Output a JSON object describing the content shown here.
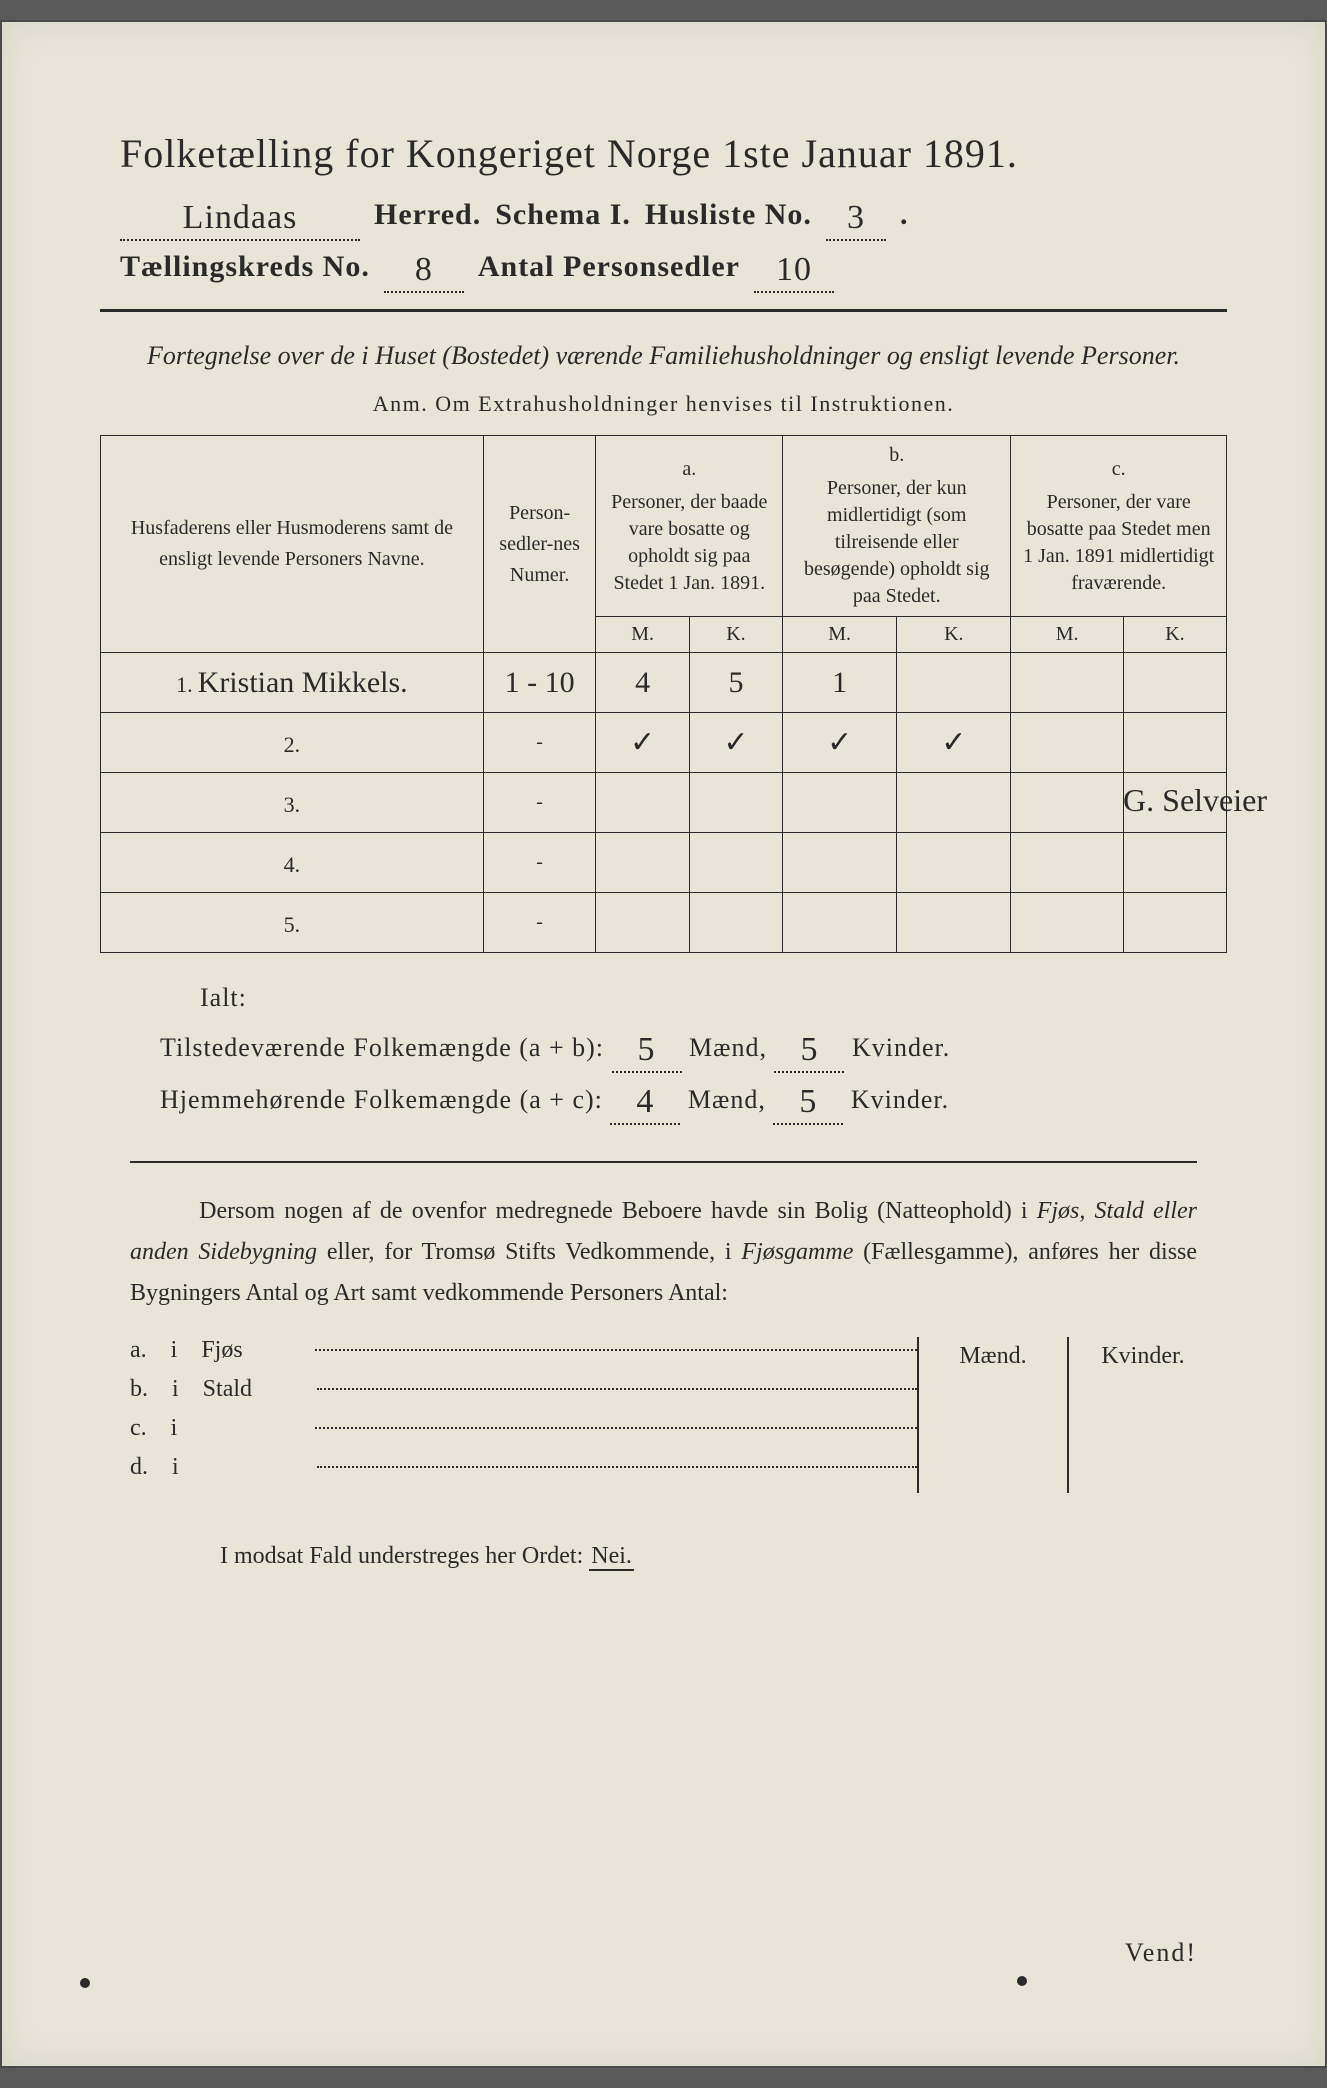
{
  "colors": {
    "page_bg": "#e8e5d8",
    "ink": "#2a2a2a",
    "outer_bg": "#5a5a5a"
  },
  "title": "Folketælling for Kongeriget Norge 1ste Januar 1891.",
  "header": {
    "herred_value": "Lindaas",
    "herred_label": "Herred.",
    "schema_label": "Schema I.",
    "husliste_label": "Husliste No.",
    "husliste_value": "3",
    "kreds_label": "Tællingskreds No.",
    "kreds_value": "8",
    "antal_label": "Antal Personsedler",
    "antal_value": "10"
  },
  "fortegnelse": "Fortegnelse over de i Huset (Bostedet) værende Familiehusholdninger og ensligt levende Personer.",
  "anm": "Anm.  Om Extrahusholdninger henvises til Instruktionen.",
  "table": {
    "col_name": "Husfaderens eller Husmoderens samt de ensligt levende Personers Navne.",
    "col_num": "Person-sedler-nes Numer.",
    "col_a_title": "a.",
    "col_a": "Personer, der baade vare bosatte og opholdt sig paa Stedet 1 Jan. 1891.",
    "col_b_title": "b.",
    "col_b": "Personer, der kun midlertidigt (som tilreisende eller besøgende) opholdt sig paa Stedet.",
    "col_c_title": "c.",
    "col_c": "Personer, der vare bosatte paa Stedet men 1 Jan. 1891 midlertidigt fraværende.",
    "m": "M.",
    "k": "K.",
    "rows": [
      {
        "n": "1.",
        "name": "Kristian Mikkels.",
        "num": "1 - 10",
        "aM": "4",
        "aK": "5",
        "bM": "1",
        "bK": "",
        "cM": "",
        "cK": ""
      },
      {
        "n": "2.",
        "name": "",
        "num": "-",
        "aM": "✓",
        "aK": "✓",
        "bM": "✓",
        "bK": "✓",
        "cM": "",
        "cK": ""
      },
      {
        "n": "3.",
        "name": "",
        "num": "-",
        "aM": "",
        "aK": "",
        "bM": "",
        "bK": "",
        "cM": "",
        "cK": ""
      },
      {
        "n": "4.",
        "name": "",
        "num": "-",
        "aM": "",
        "aK": "",
        "bM": "",
        "bK": "",
        "cM": "",
        "cK": ""
      },
      {
        "n": "5.",
        "name": "",
        "num": "-",
        "aM": "",
        "aK": "",
        "bM": "",
        "bK": "",
        "cM": "",
        "cK": ""
      }
    ],
    "margin_note": "G. Selveier"
  },
  "ialt": "Ialt:",
  "sum1": {
    "label": "Tilstedeværende Folkemængde (a + b):",
    "m_val": "5",
    "m_label": "Mænd,",
    "k_val": "5",
    "k_label": "Kvinder."
  },
  "sum2": {
    "label": "Hjemmehørende Folkemængde (a + c):",
    "m_val": "4",
    "m_label": "Mænd,",
    "k_val": "5",
    "k_label": "Kvinder."
  },
  "dersom": {
    "t1": "Dersom nogen af de ovenfor medregnede Beboere havde sin Bolig (Natteophold) i ",
    "i1": "Fjøs, Stald eller anden Sidebygning",
    "t2": " eller, for Tromsø Stifts Vedkommende, i ",
    "i2": "Fjøsgamme",
    "t3": " (Fællesgamme), anføres her disse Bygningers Antal og Art samt vedkommende Personers Antal:"
  },
  "bygning": {
    "maend": "Mænd.",
    "kvinder": "Kvinder.",
    "rows": [
      {
        "a": "a.",
        "i": "i",
        "label": "Fjøs"
      },
      {
        "a": "b.",
        "i": "i",
        "label": "Stald"
      },
      {
        "a": "c.",
        "i": "i",
        "label": ""
      },
      {
        "a": "d.",
        "i": "i",
        "label": ""
      }
    ]
  },
  "modsat": {
    "t1": "I modsat Fald understreges her Ordet: ",
    "nei": "Nei."
  },
  "vend": "Vend!"
}
